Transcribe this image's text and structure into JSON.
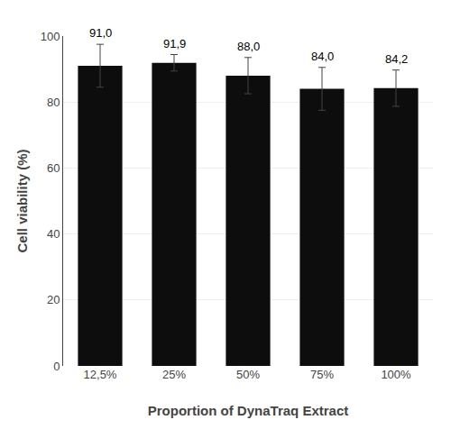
{
  "chart_data": {
    "type": "bar",
    "categories": [
      "12,5%",
      "25%",
      "50%",
      "75%",
      "100%"
    ],
    "values": [
      91.0,
      91.9,
      88.0,
      84.0,
      84.2
    ],
    "value_labels": [
      "91,0",
      "91,9",
      "88,0",
      "84,0",
      "84,2"
    ],
    "errors": [
      6.5,
      2.5,
      5.5,
      6.5,
      5.5
    ],
    "color": "#0d0d0d",
    "xlabel": "Proportion of DynaTraq Extract",
    "ylabel": "Cell viability (%)",
    "ylim": [
      0,
      100
    ],
    "yticks": [
      0,
      20,
      40,
      60,
      80,
      100
    ],
    "grid": true,
    "data_labels": true
  }
}
